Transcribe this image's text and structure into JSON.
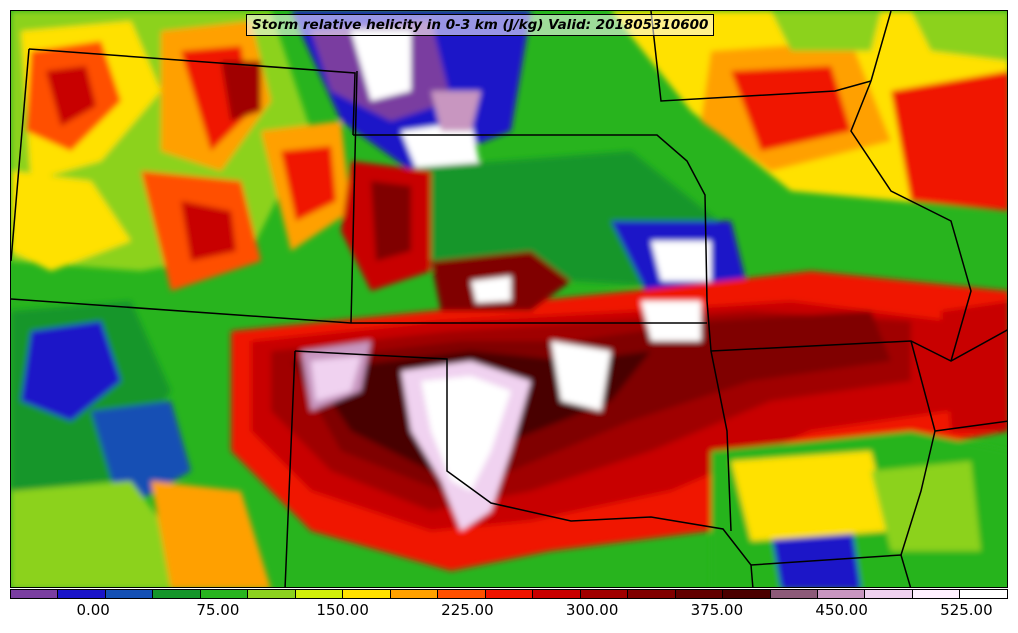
{
  "title": "Storm relative helicity in 0-3 km (J/kg) Valid: 201805310600",
  "colorbar": {
    "colors": [
      "#7a3ea0",
      "#1a14c8",
      "#1450b4",
      "#14962a",
      "#28b41e",
      "#8cd21e",
      "#d2f00a",
      "#ffe100",
      "#ffa000",
      "#ff5000",
      "#f01400",
      "#c80000",
      "#a00000",
      "#800000",
      "#620000",
      "#4a0000",
      "#8c5a78",
      "#c896c0",
      "#f0d2f0",
      "#fff0ff",
      "#ffffff"
    ],
    "tick_labels": [
      "0.00",
      "75.00",
      "150.00",
      "225.00",
      "300.00",
      "375.00",
      "450.00",
      "525.00"
    ],
    "tick_values": [
      0,
      75,
      150,
      225,
      300,
      375,
      450,
      525
    ],
    "range": [
      -50,
      550
    ]
  }
}
